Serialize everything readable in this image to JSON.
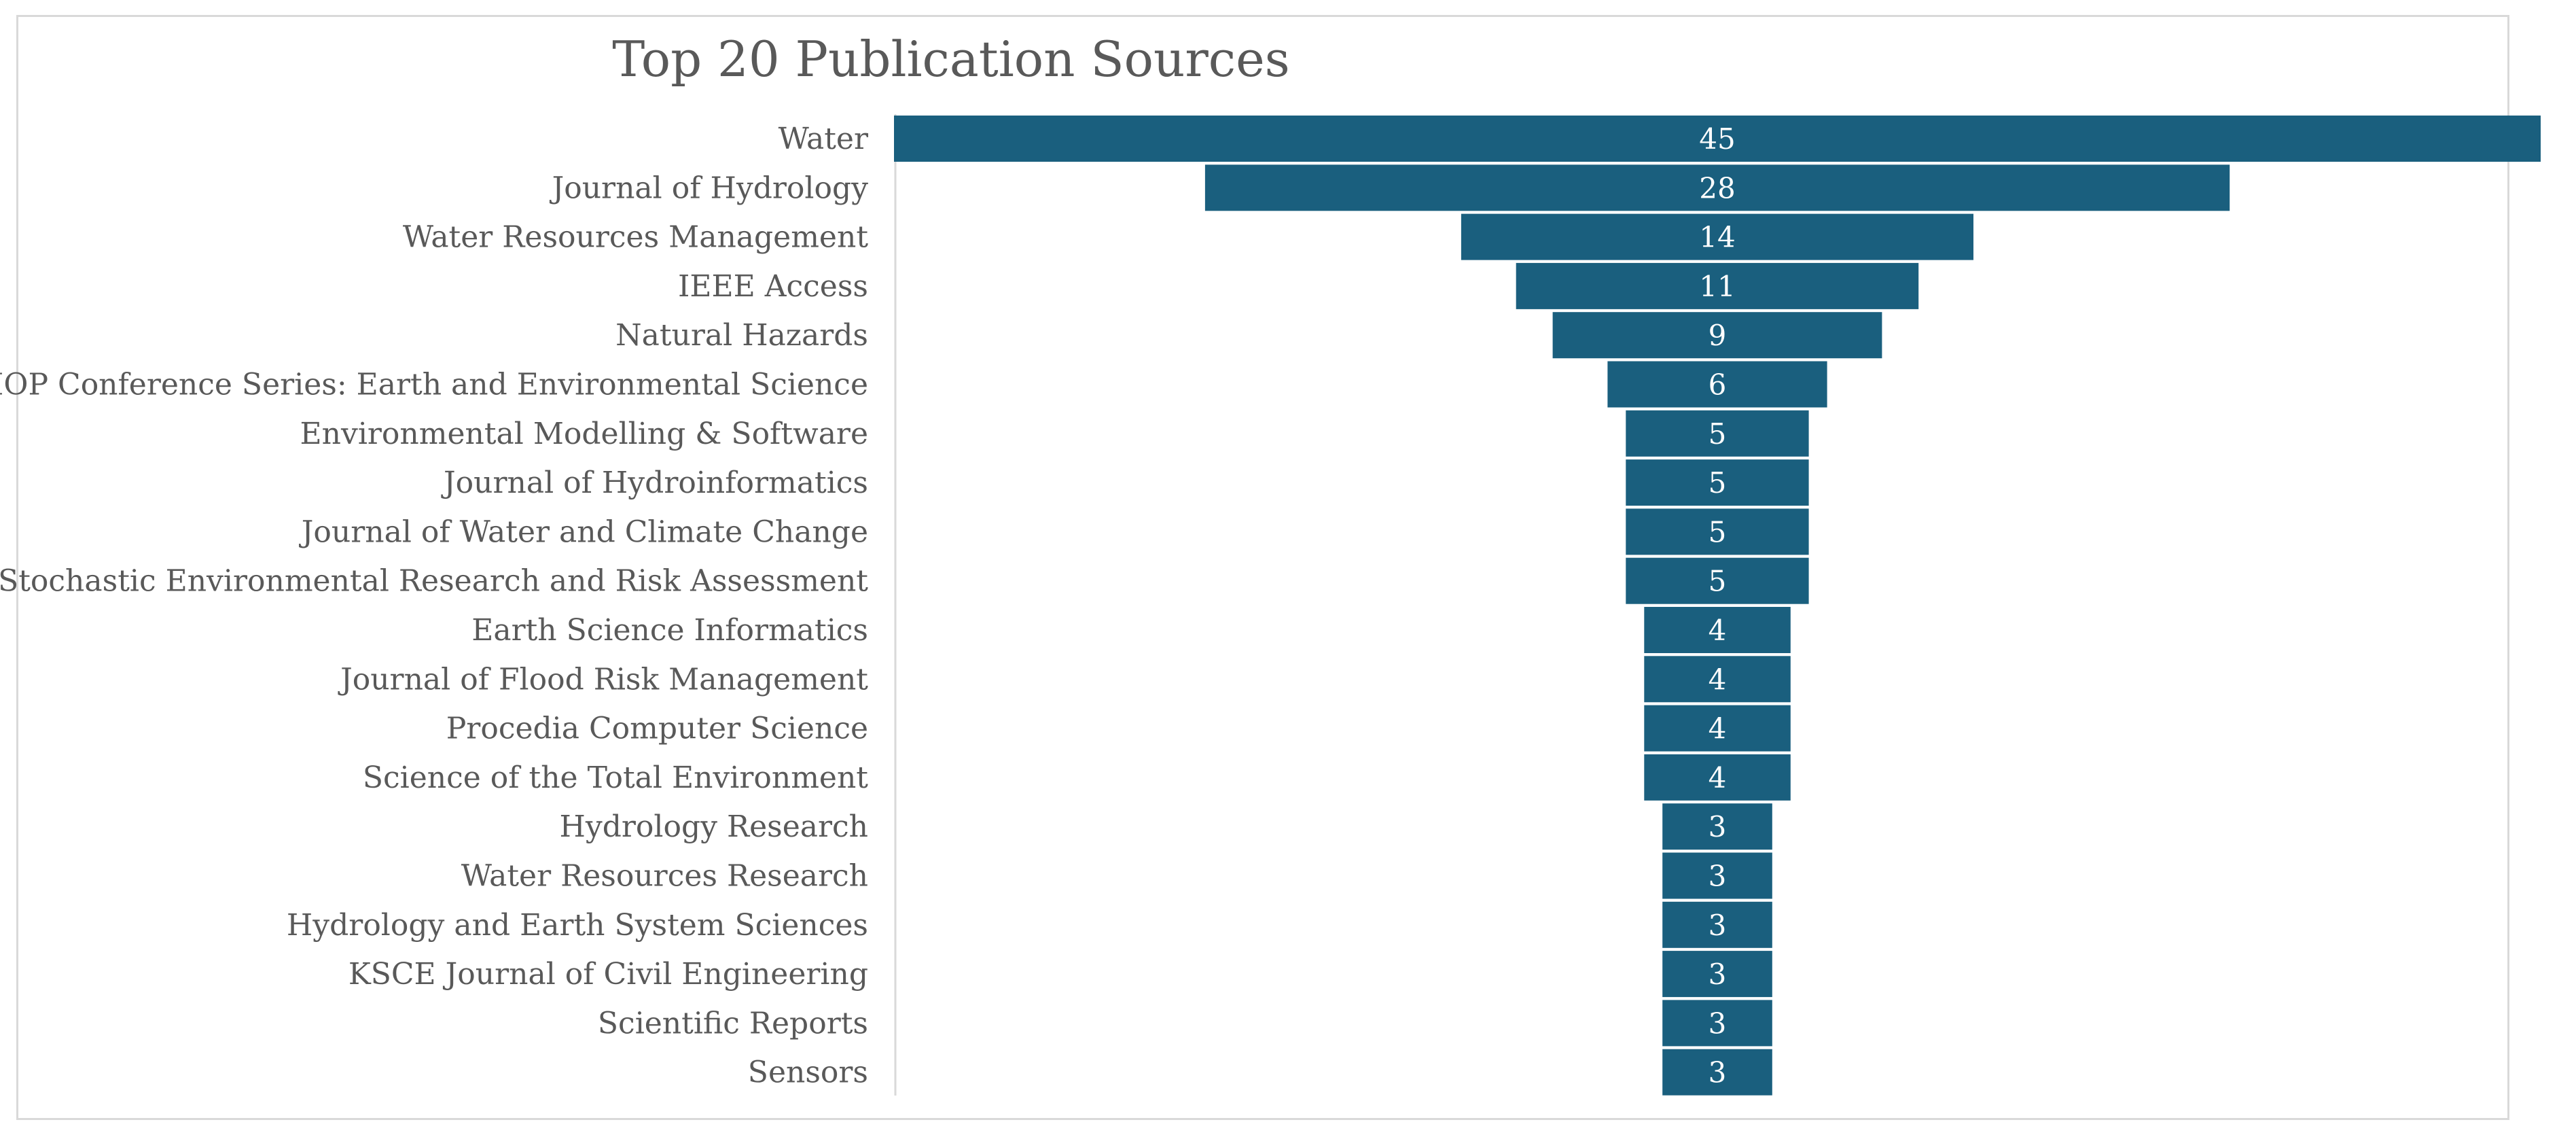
{
  "chart_data": {
    "type": "bar",
    "subtype": "funnel",
    "title": "Top 20 Publication Sources",
    "xlabel": "",
    "ylabel": "",
    "grid": false,
    "bar_color": "#1a5f7e",
    "text_color": "#595959",
    "categories": [
      "Water",
      "Journal of Hydrology",
      "Water Resources Management",
      "IEEE Access",
      "Natural Hazards",
      "IOP Conference Series: Earth and Environmental Science",
      "Environmental Modelling & Software",
      "Journal of Hydroinformatics",
      "Journal of Water and Climate Change",
      "Stochastic Environmental Research and Risk Assessment",
      "Earth Science Informatics",
      "Journal of Flood Risk Management",
      "Procedia Computer Science",
      "Science of the Total Environment",
      "Hydrology Research",
      "Water Resources Research",
      "Hydrology and Earth System Sciences",
      "KSCE Journal of Civil Engineering",
      "Scientific Reports",
      "Sensors"
    ],
    "values": [
      45,
      28,
      14,
      11,
      9,
      6,
      5,
      5,
      5,
      5,
      4,
      4,
      4,
      4,
      3,
      3,
      3,
      3,
      3,
      3
    ],
    "xlim": [
      0,
      45
    ]
  }
}
